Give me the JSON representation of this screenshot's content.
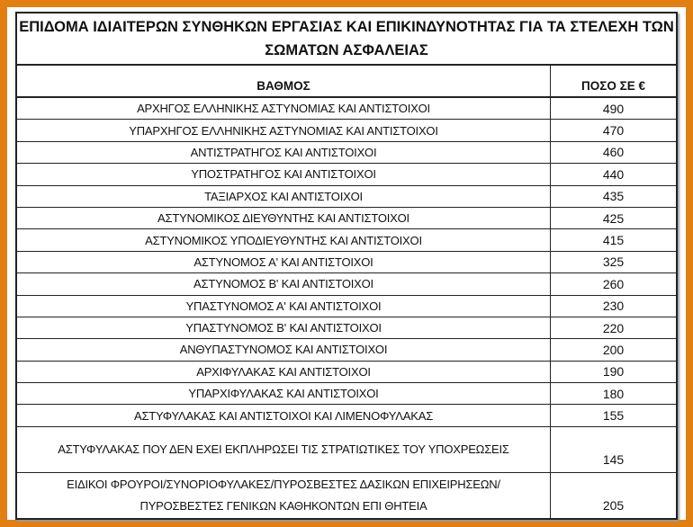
{
  "title": "ΕΠΙΔΟΜΑ ΙΔΙΑΙΤΕΡΩΝ ΣΥΝΘΗΚΩΝ ΕΡΓΑΣΙΑΣ ΚΑΙ ΕΠΙΚΙΝΔΥΝΟΤΗΤΑΣ ΓΙΑ ΤΑ ΣΤΕΛΕΧΗ ΤΩΝ ΣΩΜΑΤΩΝ ΑΣΦΑΛΕΙΑΣ",
  "columns": [
    "ΒΑΘΜΟΣ",
    "ΠΟΣΟ ΣΕ €"
  ],
  "rows": [
    {
      "rank": "ΑΡΧΗΓΟΣ ΕΛΛΗΝΙΚΗΣ ΑΣΤΥΝΟΜΙΑΣ ΚΑΙ ΑΝΤΙΣΤΟΙΧΟΙ",
      "amount": "490"
    },
    {
      "rank": "ΥΠΑΡΧΗΓΟΣ ΕΛΛΗΝΙΚΗΣ ΑΣΤΥΝΟΜΙΑΣ ΚΑΙ ΑΝΤΙΣΤΟΙΧΟΙ",
      "amount": "470"
    },
    {
      "rank": "ΑΝΤΙΣΤΡΑΤΗΓΟΣ ΚΑΙ ΑΝΤΙΣΤΟΙΧΟΙ",
      "amount": "460"
    },
    {
      "rank": "ΥΠΟΣΤΡΑΤΗΓΟΣ ΚΑΙ ΑΝΤΙΣΤΟΙΧΟΙ",
      "amount": "440"
    },
    {
      "rank": "ΤΑΞΙΑΡΧΟΣ ΚΑΙ ΑΝΤΙΣΤΟΙΧΟΙ",
      "amount": "435"
    },
    {
      "rank": "ΑΣΤΥΝΟΜΙΚΟΣ ΔΙΕΥΘΥΝΤΗΣ ΚΑΙ ΑΝΤΙΣΤΟΙΧΟΙ",
      "amount": "425"
    },
    {
      "rank": "ΑΣΤΥΝΟΜΙΚΟΣ ΥΠΟΔΙΕΥΘΥΝΤΗΣ ΚΑΙ ΑΝΤΙΣΤΟΙΧΟΙ",
      "amount": "415"
    },
    {
      "rank": "ΑΣΤΥΝΟΜΟΣ Α' ΚΑΙ ΑΝΤΙΣΤΟΙΧΟΙ",
      "amount": "325"
    },
    {
      "rank": "ΑΣΤΥΝΟΜΟΣ Β' ΚΑΙ ΑΝΤΙΣΤΟΙΧΟΙ",
      "amount": "260"
    },
    {
      "rank": "ΥΠΑΣΤΥΝΟΜΟΣ Α' ΚΑΙ ΑΝΤΙΣΤΟΙΧΟΙ",
      "amount": "230"
    },
    {
      "rank": "ΥΠΑΣΤΥΝΟΜΟΣ Β' ΚΑΙ ΑΝΤΙΣΤΟΙΧΟΙ",
      "amount": "220"
    },
    {
      "rank": "ΑΝΘΥΠΑΣΤΥΝΟΜΟΣ ΚΑΙ ΑΝΤΙΣΤΟΙΧΟΙ",
      "amount": "200"
    },
    {
      "rank": "ΑΡΧΙΦΥΛΑΚΑΣ ΚΑΙ ΑΝΤΙΣΤΟΙΧΟΙ",
      "amount": "190"
    },
    {
      "rank": "ΥΠΑΡΧΙΦΥΛΑΚΑΣ ΚΑΙ ΑΝΤΙΣΤΟΙΧΟΙ",
      "amount": "180"
    },
    {
      "rank": "ΑΣΤΥΦΥΛΑΚΑΣ ΚΑΙ ΑΝΤΙΣΤΟΙΧΟΙ ΚΑΙ ΛΙΜΕΝΟΦΥΛΑΚΑΣ",
      "amount": "155"
    },
    {
      "rank": "ΑΣΤΥΦΥΛΑΚΑΣ ΠΟΥ ΔΕΝ ΕΧΕΙ ΕΚΠΛΗΡΩΣΕΙ ΤΙΣ ΣΤΡΑΤΙΩΤΙΚΕΣ ΤΟΥ ΥΠΟΧΡΕΩΣΕΙΣ",
      "amount": "145"
    },
    {
      "rank": "ΕΙΔΙΚΟΙ ΦΡΟΥΡΟΙ/ΣΥΝΟΡΙΟΦΥΛΑΚΕΣ/ΠΥΡΟΣΒΕΣΤΕΣ ΔΑΣΙΚΩΝ ΕΠΙΧΕΙΡΗΣΕΩΝ/ΠΥΡΟΣΒΕΣΤΕΣ ΓΕΝΙΚΩΝ ΚΑΘΗΚΟΝΤΩΝ ΕΠΙ ΘΗΤΕΙΑ",
      "amount": "205"
    }
  ],
  "colors": {
    "frame": "#E27F12",
    "background": "#FFFFFF",
    "text": "#111111"
  }
}
